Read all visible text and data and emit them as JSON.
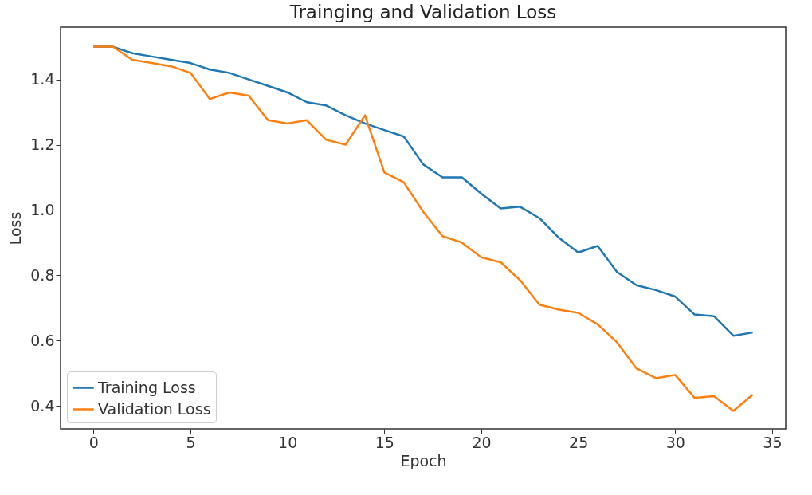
{
  "chart_data": {
    "type": "line",
    "title": "Trainging and Validation Loss",
    "xlabel": "Epoch",
    "ylabel": "Loss",
    "x": [
      0,
      1,
      2,
      3,
      4,
      5,
      6,
      7,
      8,
      9,
      10,
      11,
      12,
      13,
      14,
      15,
      16,
      17,
      18,
      19,
      20,
      21,
      22,
      23,
      24,
      25,
      26,
      27,
      28,
      29,
      30,
      31,
      32,
      33,
      34
    ],
    "series": [
      {
        "name": "Training Loss",
        "color": "#1f77b4",
        "values": [
          1.5,
          1.5,
          1.48,
          1.47,
          1.46,
          1.45,
          1.43,
          1.42,
          1.4,
          1.38,
          1.36,
          1.33,
          1.32,
          1.29,
          1.265,
          1.245,
          1.225,
          1.14,
          1.1,
          1.1,
          1.05,
          1.005,
          1.01,
          0.975,
          0.915,
          0.87,
          0.89,
          0.81,
          0.77,
          0.755,
          0.735,
          0.68,
          0.675,
          0.615,
          0.625
        ]
      },
      {
        "name": "Validation Loss",
        "color": "#ff7f0e",
        "values": [
          1.5,
          1.5,
          1.46,
          1.45,
          1.44,
          1.42,
          1.34,
          1.36,
          1.35,
          1.275,
          1.265,
          1.275,
          1.215,
          1.2,
          1.29,
          1.115,
          1.085,
          0.995,
          0.92,
          0.9,
          0.855,
          0.84,
          0.785,
          0.71,
          0.695,
          0.685,
          0.65,
          0.595,
          0.515,
          0.485,
          0.495,
          0.425,
          0.43,
          0.385,
          0.435
        ]
      }
    ],
    "xlim": [
      -1.7,
      35.7
    ],
    "xticks": [
      0,
      5,
      10,
      15,
      20,
      25,
      30,
      35
    ],
    "ylim": [
      0.33,
      1.56
    ],
    "yticks": [
      0.4,
      0.6,
      0.8,
      {
        "value": 1,
        "label": "1.0"
      },
      1.2,
      1.4
    ],
    "legend": "bottom left",
    "grid": false,
    "marker": "none",
    "line_style": "solid"
  }
}
